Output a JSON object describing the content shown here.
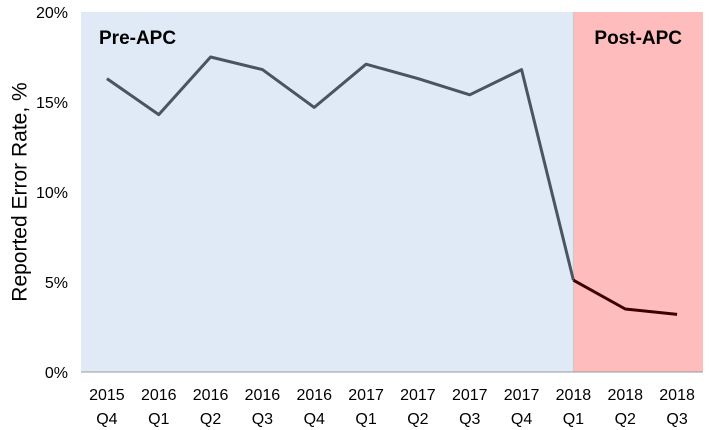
{
  "chart_data": {
    "type": "line",
    "title": "",
    "xlabel": "",
    "ylabel": "Reported Error Rate, %",
    "ylim": [
      0,
      20
    ],
    "y_ticks": [
      {
        "value": 0,
        "label": "0%"
      },
      {
        "value": 5,
        "label": "5%"
      },
      {
        "value": 10,
        "label": "10%"
      },
      {
        "value": 15,
        "label": "15%"
      },
      {
        "value": 20,
        "label": "20%"
      }
    ],
    "categories": [
      {
        "year": "2015",
        "quarter": "Q4"
      },
      {
        "year": "2016",
        "quarter": "Q1"
      },
      {
        "year": "2016",
        "quarter": "Q2"
      },
      {
        "year": "2016",
        "quarter": "Q3"
      },
      {
        "year": "2016",
        "quarter": "Q4"
      },
      {
        "year": "2017",
        "quarter": "Q1"
      },
      {
        "year": "2017",
        "quarter": "Q2"
      },
      {
        "year": "2017",
        "quarter": "Q3"
      },
      {
        "year": "2017",
        "quarter": "Q4"
      },
      {
        "year": "2018",
        "quarter": "Q1"
      },
      {
        "year": "2018",
        "quarter": "Q2"
      },
      {
        "year": "2018",
        "quarter": "Q3"
      }
    ],
    "values": [
      16.3,
      14.3,
      17.5,
      16.8,
      14.7,
      17.1,
      16.3,
      15.4,
      16.8,
      5.1,
      3.5,
      3.2
    ],
    "regions": [
      {
        "label": "Pre-APC",
        "start_category": "2015 Q4",
        "end_category": "2018 Q1",
        "color": "#dfeaf6"
      },
      {
        "label": "Post-APC",
        "start_category": "2018 Q1",
        "end_category": "2018 Q3",
        "color": "#ffbcbc"
      }
    ],
    "line_colors": {
      "pre": "#4a5560",
      "post": "#3c0000"
    },
    "grid": false,
    "legend": "none"
  }
}
